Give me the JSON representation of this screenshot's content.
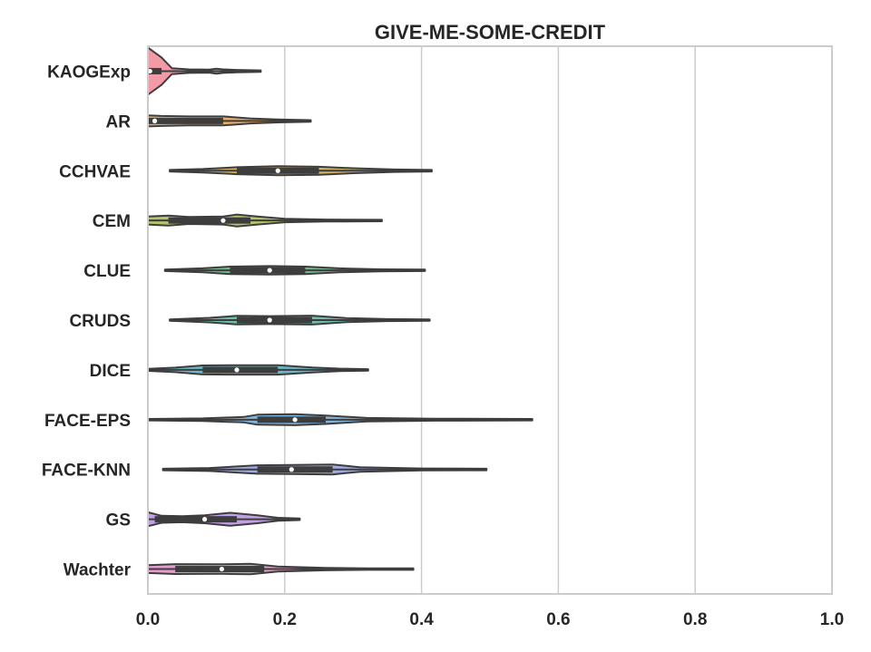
{
  "chart_data": {
    "type": "violin",
    "orientation": "horizontal",
    "title": "GIVE-ME-SOME-CREDIT",
    "xlabel": "",
    "ylabel": "",
    "xlim": [
      0.0,
      1.0
    ],
    "xticks": [
      0.0,
      0.2,
      0.4,
      0.6,
      0.8,
      1.0
    ],
    "xtick_labels": [
      "0.0",
      "0.2",
      "0.4",
      "0.6",
      "0.8",
      "1.0"
    ],
    "grid": "vertical",
    "categories": [
      "KAOGExp",
      "AR",
      "CCHVAE",
      "CEM",
      "CLUE",
      "CRUDS",
      "DICE",
      "FACE-EPS",
      "FACE-KNN",
      "GS",
      "Wachter"
    ],
    "series": [
      {
        "category": "KAOGExp",
        "color": "#f08a96",
        "min": 0.0,
        "max": 0.165,
        "median": 0.003,
        "q1": 0.0,
        "q3": 0.02,
        "density": [
          [
            0.0,
            0.95
          ],
          [
            0.02,
            0.55
          ],
          [
            0.035,
            0.12
          ],
          [
            0.06,
            0.07
          ],
          [
            0.09,
            0.06
          ],
          [
            0.1,
            0.1
          ],
          [
            0.11,
            0.07
          ],
          [
            0.13,
            0.05
          ],
          [
            0.165,
            0.03
          ]
        ]
      },
      {
        "category": "AR",
        "color": "#e8a050",
        "min": 0.0,
        "max": 0.238,
        "median": 0.01,
        "q1": 0.0,
        "q3": 0.11,
        "density": [
          [
            0.0,
            0.22
          ],
          [
            0.02,
            0.2
          ],
          [
            0.06,
            0.18
          ],
          [
            0.11,
            0.18
          ],
          [
            0.15,
            0.1
          ],
          [
            0.19,
            0.06
          ],
          [
            0.238,
            0.03
          ]
        ]
      },
      {
        "category": "CCHVAE",
        "color": "#c9a84a",
        "min": 0.032,
        "max": 0.415,
        "median": 0.19,
        "q1": 0.13,
        "q3": 0.25,
        "density": [
          [
            0.032,
            0.03
          ],
          [
            0.08,
            0.07
          ],
          [
            0.13,
            0.14
          ],
          [
            0.19,
            0.18
          ],
          [
            0.25,
            0.16
          ],
          [
            0.3,
            0.1
          ],
          [
            0.36,
            0.05
          ],
          [
            0.415,
            0.03
          ]
        ]
      },
      {
        "category": "CEM",
        "color": "#a8b855",
        "min": 0.0,
        "max": 0.342,
        "median": 0.11,
        "q1": 0.03,
        "q3": 0.15,
        "density": [
          [
            0.0,
            0.16
          ],
          [
            0.03,
            0.2
          ],
          [
            0.06,
            0.14
          ],
          [
            0.11,
            0.16
          ],
          [
            0.13,
            0.24
          ],
          [
            0.16,
            0.16
          ],
          [
            0.2,
            0.07
          ],
          [
            0.26,
            0.04
          ],
          [
            0.342,
            0.03
          ]
        ]
      },
      {
        "category": "CLUE",
        "color": "#5db07a",
        "min": 0.025,
        "max": 0.405,
        "median": 0.178,
        "q1": 0.12,
        "q3": 0.23,
        "density": [
          [
            0.025,
            0.03
          ],
          [
            0.08,
            0.08
          ],
          [
            0.12,
            0.15
          ],
          [
            0.178,
            0.17
          ],
          [
            0.23,
            0.15
          ],
          [
            0.28,
            0.08
          ],
          [
            0.34,
            0.04
          ],
          [
            0.405,
            0.03
          ]
        ]
      },
      {
        "category": "CRUDS",
        "color": "#55b0a0",
        "min": 0.032,
        "max": 0.412,
        "median": 0.178,
        "q1": 0.13,
        "q3": 0.24,
        "density": [
          [
            0.032,
            0.03
          ],
          [
            0.09,
            0.09
          ],
          [
            0.13,
            0.17
          ],
          [
            0.178,
            0.16
          ],
          [
            0.24,
            0.18
          ],
          [
            0.29,
            0.08
          ],
          [
            0.35,
            0.04
          ],
          [
            0.412,
            0.03
          ]
        ]
      },
      {
        "category": "DICE",
        "color": "#55aac0",
        "min": 0.0,
        "max": 0.322,
        "median": 0.13,
        "q1": 0.08,
        "q3": 0.19,
        "density": [
          [
            0.0,
            0.04
          ],
          [
            0.04,
            0.09
          ],
          [
            0.08,
            0.18
          ],
          [
            0.13,
            0.19
          ],
          [
            0.19,
            0.19
          ],
          [
            0.24,
            0.1
          ],
          [
            0.28,
            0.05
          ],
          [
            0.322,
            0.03
          ]
        ]
      },
      {
        "category": "FACE-EPS",
        "color": "#6aa8d8",
        "min": 0.0,
        "max": 0.562,
        "median": 0.215,
        "q1": 0.16,
        "q3": 0.26,
        "density": [
          [
            0.0,
            0.03
          ],
          [
            0.08,
            0.05
          ],
          [
            0.14,
            0.11
          ],
          [
            0.16,
            0.2
          ],
          [
            0.215,
            0.22
          ],
          [
            0.26,
            0.17
          ],
          [
            0.32,
            0.07
          ],
          [
            0.42,
            0.04
          ],
          [
            0.562,
            0.03
          ]
        ]
      },
      {
        "category": "FACE-KNN",
        "color": "#8f9ee0",
        "min": 0.022,
        "max": 0.495,
        "median": 0.21,
        "q1": 0.16,
        "q3": 0.27,
        "density": [
          [
            0.022,
            0.03
          ],
          [
            0.09,
            0.06
          ],
          [
            0.16,
            0.17
          ],
          [
            0.21,
            0.18
          ],
          [
            0.27,
            0.2
          ],
          [
            0.31,
            0.09
          ],
          [
            0.4,
            0.04
          ],
          [
            0.495,
            0.03
          ]
        ]
      },
      {
        "category": "GS",
        "color": "#b88ee0",
        "min": 0.0,
        "max": 0.222,
        "median": 0.083,
        "q1": 0.01,
        "q3": 0.13,
        "density": [
          [
            0.0,
            0.28
          ],
          [
            0.02,
            0.14
          ],
          [
            0.05,
            0.12
          ],
          [
            0.083,
            0.16
          ],
          [
            0.12,
            0.26
          ],
          [
            0.16,
            0.16
          ],
          [
            0.19,
            0.06
          ],
          [
            0.222,
            0.03
          ]
        ]
      },
      {
        "category": "Wachter",
        "color": "#e08cc8",
        "min": 0.0,
        "max": 0.388,
        "median": 0.108,
        "q1": 0.04,
        "q3": 0.17,
        "density": [
          [
            0.0,
            0.16
          ],
          [
            0.04,
            0.2
          ],
          [
            0.108,
            0.19
          ],
          [
            0.15,
            0.21
          ],
          [
            0.19,
            0.1
          ],
          [
            0.26,
            0.05
          ],
          [
            0.32,
            0.03
          ],
          [
            0.388,
            0.03
          ]
        ]
      }
    ]
  }
}
